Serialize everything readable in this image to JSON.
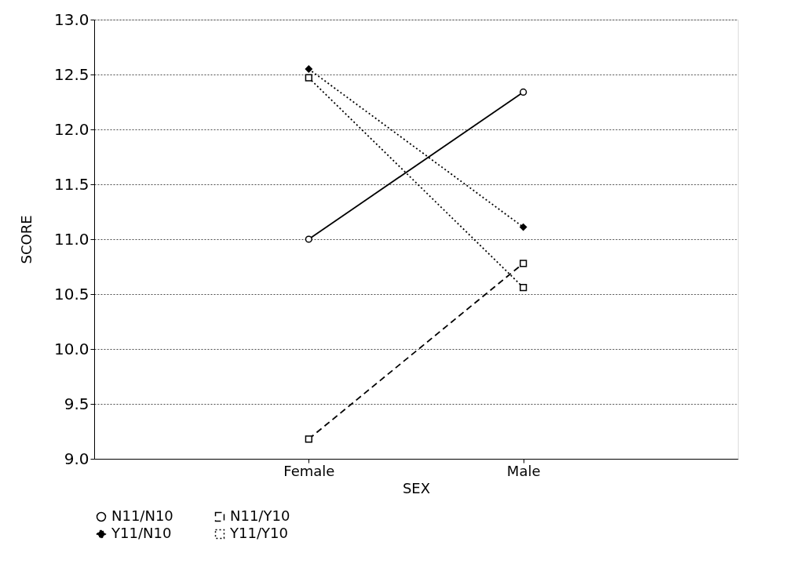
{
  "chart_data": {
    "type": "line",
    "xlabel": "SEX",
    "ylabel": "SCORE",
    "categories": [
      "Female",
      "Male"
    ],
    "series": [
      {
        "name": "N11/N10",
        "color": "#000000",
        "values": [
          11.0,
          12.34
        ],
        "marker": "circle",
        "line_style": "solid"
      },
      {
        "name": "N11/Y10",
        "color": "#000000",
        "values": [
          9.18,
          10.78
        ],
        "marker": "square",
        "line_style": "dashed"
      },
      {
        "name": "Y11/N10",
        "color": "#000000",
        "values": [
          12.55,
          11.11
        ],
        "marker": "diamond",
        "line_style": "dotted"
      },
      {
        "name": "Y11/Y10",
        "color": "#000000",
        "values": [
          12.47,
          10.56
        ],
        "marker": "square",
        "line_style": "dotted"
      }
    ],
    "ylim": [
      9.0,
      13.0
    ],
    "yticks": [
      {
        "value": 9,
        "label": "9.0"
      },
      9.5,
      {
        "value": 10,
        "label": "10.0"
      },
      10.5,
      {
        "value": 11,
        "label": "11.0"
      },
      11.5,
      {
        "value": 12,
        "label": "12.0"
      },
      12.5,
      {
        "value": 13,
        "label": "13.0"
      }
    ],
    "grid": "y",
    "legend": "bottom"
  }
}
